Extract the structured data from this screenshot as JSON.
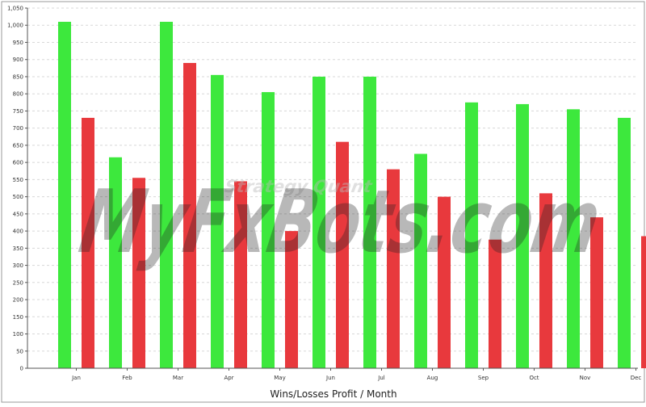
{
  "chart_data": {
    "type": "bar",
    "xlabel": "Wins/Losses Profit / Month",
    "ylabel": "",
    "ylim": [
      0,
      1050
    ],
    "yticks": [
      0,
      50,
      100,
      150,
      200,
      250,
      300,
      350,
      400,
      450,
      500,
      550,
      600,
      650,
      700,
      750,
      800,
      850,
      900,
      950,
      1000,
      1050
    ],
    "ytick_labels": [
      "0",
      "50",
      "100",
      "150",
      "200",
      "250",
      "300",
      "350",
      "400",
      "450",
      "500",
      "550",
      "600",
      "650",
      "700",
      "750",
      "800",
      "850",
      "900",
      "950",
      "1,000",
      "1,050"
    ],
    "categories": [
      "Jan",
      "Feb",
      "Mar",
      "Apr",
      "May",
      "Jun",
      "Jul",
      "Aug",
      "Sep",
      "Oct",
      "Nov",
      "Dec"
    ],
    "grid": true,
    "legend": "none",
    "series": [
      {
        "color": "#3de83d",
        "values": [
          1010,
          615,
          1010,
          855,
          805,
          850,
          850,
          625,
          775,
          770,
          755,
          730
        ]
      },
      {
        "color": "#e8393d",
        "values": [
          730,
          555,
          890,
          545,
          400,
          660,
          580,
          500,
          375,
          510,
          440,
          385
        ]
      }
    ]
  },
  "watermark": {
    "main": "MyFxBots.com",
    "sub": "Strategy Quant"
  },
  "colors": {
    "grid": "#d8d8d8",
    "axis": "#555555",
    "frame": "#999999"
  }
}
